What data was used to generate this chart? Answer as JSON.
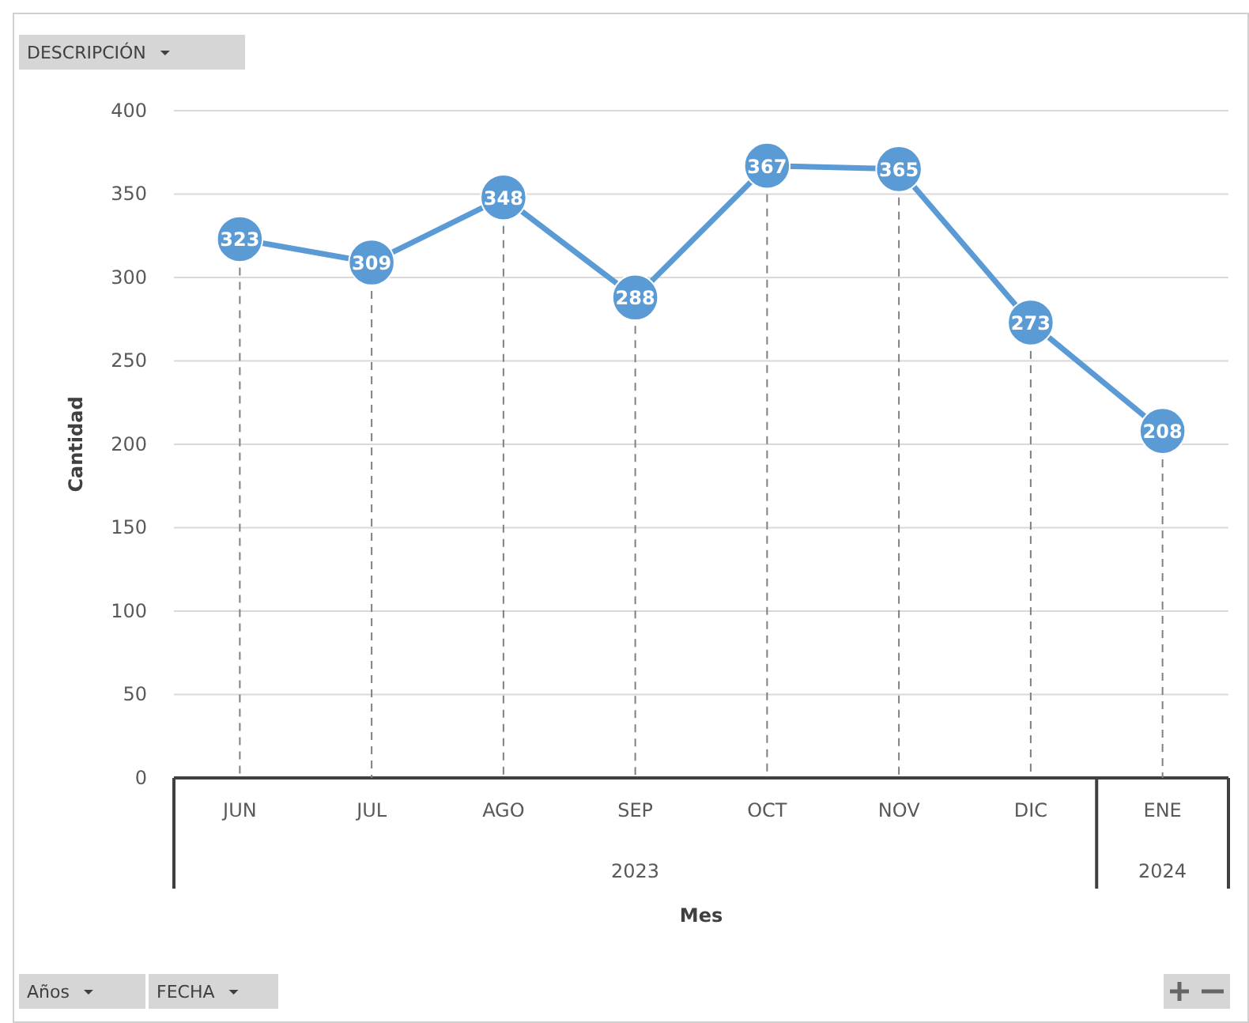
{
  "chart_data": {
    "type": "line",
    "categories": [
      "JUN",
      "JUL",
      "AGO",
      "SEP",
      "OCT",
      "NOV",
      "DIC",
      "ENE"
    ],
    "series": [
      {
        "color": "#5b9bd5",
        "values": [
          323,
          309,
          348,
          288,
          367,
          365,
          273,
          208
        ]
      }
    ],
    "ylim": [
      0,
      400
    ],
    "yticks": [
      0,
      50,
      100,
      150,
      200,
      250,
      300,
      350,
      400
    ],
    "ylabel": "Cantidad",
    "xlabel": "Mes",
    "grid": true,
    "marker": "circle",
    "line_style": "solid",
    "data_labels": true,
    "annotations": [
      "DESCRIPCIÓN",
      "Años",
      "FECHA",
      "2023",
      "2024"
    ]
  }
}
